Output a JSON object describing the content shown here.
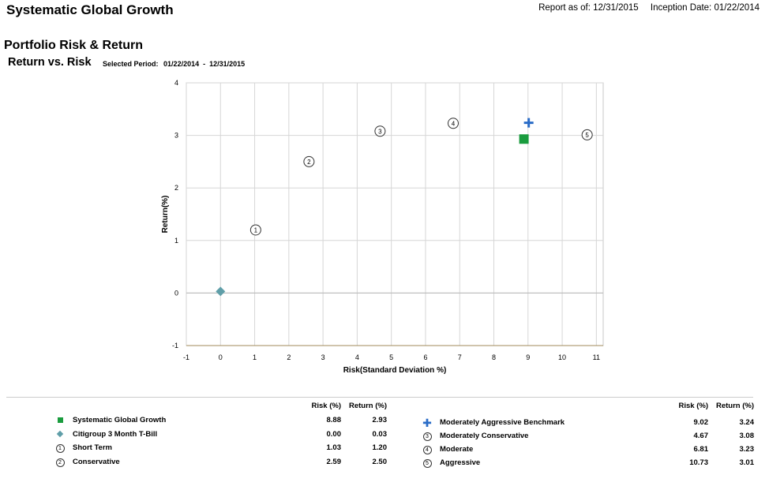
{
  "header": {
    "report_title": "Systematic Global Growth",
    "report_as_of": "Report as of: 12/31/2015",
    "inception_date": "Inception Date: 01/22/2014"
  },
  "section": {
    "title": "Portfolio Risk & Return",
    "subtitle": "Return vs. Risk",
    "period_label": "Selected Period:",
    "period_value": "01/22/2014  -  12/31/2015"
  },
  "chart_data": {
    "type": "scatter",
    "xlabel": "Risk(Standard Deviation %)",
    "ylabel": "Return(%)",
    "xlim": [
      -1,
      11.2
    ],
    "ylim": [
      -1,
      4
    ],
    "xticks": [
      -1,
      0,
      1,
      2,
      3,
      4,
      5,
      6,
      7,
      8,
      9,
      10,
      11
    ],
    "yticks": [
      -1,
      0,
      1,
      2,
      3,
      4
    ],
    "grid": true,
    "series": [
      {
        "name": "Systematic Global Growth",
        "marker": "square",
        "color": "#1a9c3e",
        "x": 8.88,
        "y": 2.93
      },
      {
        "name": "Citigroup 3 Month T-Bill",
        "marker": "diamond",
        "color": "#5f9ea8",
        "x": 0.0,
        "y": 0.03
      },
      {
        "name": "Short Term",
        "marker": "circle",
        "label": "1",
        "x": 1.03,
        "y": 1.2
      },
      {
        "name": "Conservative",
        "marker": "circle",
        "label": "2",
        "x": 2.59,
        "y": 2.5
      },
      {
        "name": "Moderately Aggressive Benchmark",
        "marker": "plus",
        "color": "#2a6cc7",
        "x": 9.02,
        "y": 3.24
      },
      {
        "name": "Moderately Conservative",
        "marker": "circle",
        "label": "3",
        "x": 4.67,
        "y": 3.08
      },
      {
        "name": "Moderate",
        "marker": "circle",
        "label": "4",
        "x": 6.81,
        "y": 3.23
      },
      {
        "name": "Aggressive",
        "marker": "circle",
        "label": "5",
        "x": 10.73,
        "y": 3.01
      }
    ]
  },
  "legend": {
    "risk_header": "Risk (%)",
    "return_header": "Return (%)",
    "left": [
      {
        "marker": "square",
        "name": "Systematic Global Growth",
        "risk": "8.88",
        "return": "2.93"
      },
      {
        "marker": "diamond",
        "name": "Citigroup 3 Month T-Bill",
        "risk": "0.00",
        "return": "0.03"
      },
      {
        "marker": "circle",
        "label": "1",
        "name": "Short Term",
        "risk": "1.03",
        "return": "1.20"
      },
      {
        "marker": "circle",
        "label": "2",
        "name": "Conservative",
        "risk": "2.59",
        "return": "2.50"
      }
    ],
    "right": [
      {
        "marker": "plus",
        "name": "Moderately Aggressive Benchmark",
        "risk": "9.02",
        "return": "3.24"
      },
      {
        "marker": "circle",
        "label": "3",
        "name": "Moderately Conservative",
        "risk": "4.67",
        "return": "3.08"
      },
      {
        "marker": "circle",
        "label": "4",
        "name": "Moderate",
        "risk": "6.81",
        "return": "3.23"
      },
      {
        "marker": "circle",
        "label": "5",
        "name": "Aggressive",
        "risk": "10.73",
        "return": "3.01"
      }
    ]
  }
}
